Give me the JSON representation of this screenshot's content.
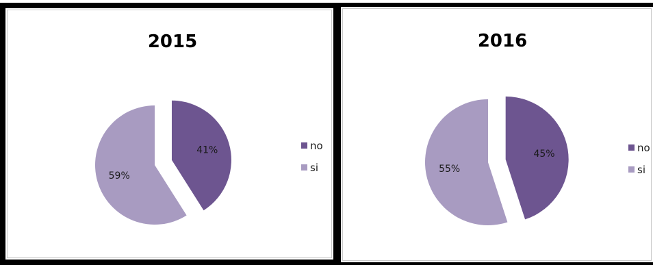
{
  "chart_data": [
    {
      "type": "pie",
      "title": "2015",
      "categories": [
        "no",
        "si"
      ],
      "values": [
        41,
        59
      ],
      "labels": [
        "41%",
        "59%"
      ],
      "colors": [
        "#6d5590",
        "#a89bc1"
      ],
      "exploded": "no",
      "legend": "right"
    },
    {
      "type": "pie",
      "title": "2016",
      "categories": [
        "no",
        "si"
      ],
      "values": [
        45,
        55
      ],
      "labels": [
        "45%",
        "55%"
      ],
      "colors": [
        "#6d5590",
        "#a89bc1"
      ],
      "exploded": "no",
      "legend": "right"
    }
  ]
}
